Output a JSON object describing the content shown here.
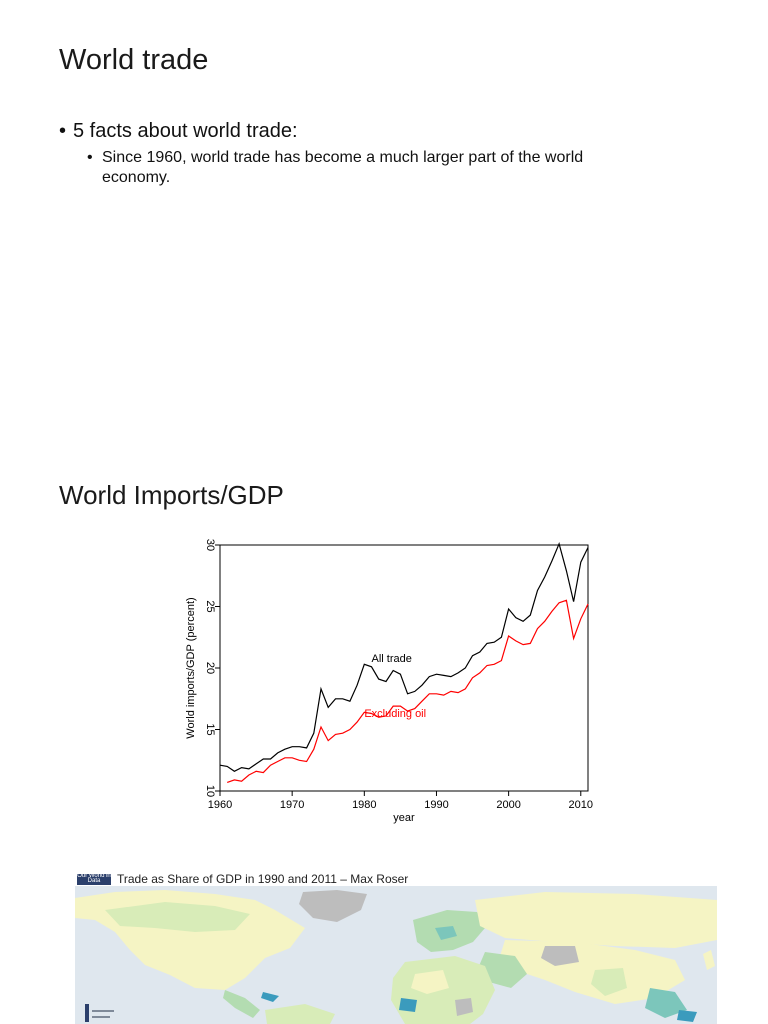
{
  "slide": {
    "title": "World trade",
    "bullets": [
      {
        "text": "5 facts about world trade:",
        "sub": [
          "Since 1960, world trade has become a much larger part of the world economy."
        ]
      }
    ],
    "bullet_char": "•"
  },
  "section2": {
    "title": "World Imports/GDP"
  },
  "chart_data": {
    "type": "line",
    "xlabel": "year",
    "ylabel": "World imports/GDP (percent)",
    "xlim": [
      1960,
      2011
    ],
    "ylim": [
      10,
      30
    ],
    "xticks": [
      1960,
      1970,
      1980,
      1990,
      2000,
      2010
    ],
    "yticks": [
      10,
      15,
      20,
      25,
      30
    ],
    "grid": false,
    "series": [
      {
        "name": "All trade",
        "color": "#000000",
        "x": [
          1960,
          1961,
          1962,
          1963,
          1964,
          1965,
          1966,
          1967,
          1968,
          1969,
          1970,
          1971,
          1972,
          1973,
          1974,
          1975,
          1976,
          1977,
          1978,
          1979,
          1980,
          1981,
          1982,
          1983,
          1984,
          1985,
          1986,
          1987,
          1988,
          1989,
          1990,
          1991,
          1992,
          1993,
          1994,
          1995,
          1996,
          1997,
          1998,
          1999,
          2000,
          2001,
          2002,
          2003,
          2004,
          2005,
          2006,
          2007,
          2008,
          2009,
          2010,
          2011
        ],
        "values": [
          12.1,
          12.0,
          11.6,
          11.9,
          11.8,
          12.2,
          12.6,
          12.6,
          13.1,
          13.4,
          13.6,
          13.6,
          13.5,
          14.7,
          18.3,
          16.8,
          17.5,
          17.5,
          17.3,
          18.6,
          20.3,
          20.1,
          19.1,
          18.9,
          19.8,
          19.5,
          17.9,
          18.1,
          18.6,
          19.3,
          19.5,
          19.4,
          19.3,
          19.6,
          20.0,
          21.0,
          21.3,
          22.0,
          22.1,
          22.5,
          24.8,
          24.1,
          23.8,
          24.3,
          26.3,
          27.4,
          28.7,
          30.1,
          27.9,
          25.4,
          28.6,
          29.8
        ]
      },
      {
        "name": "Excluding oil",
        "color": "#ff0000",
        "x": [
          1961,
          1962,
          1963,
          1964,
          1965,
          1966,
          1967,
          1968,
          1969,
          1970,
          1971,
          1972,
          1973,
          1974,
          1975,
          1976,
          1977,
          1978,
          1979,
          1980,
          1981,
          1982,
          1983,
          1984,
          1985,
          1986,
          1987,
          1988,
          1989,
          1990,
          1991,
          1992,
          1993,
          1994,
          1995,
          1996,
          1997,
          1998,
          1999,
          2000,
          2001,
          2002,
          2003,
          2004,
          2005,
          2006,
          2007,
          2008,
          2009,
          2010,
          2011
        ],
        "values": [
          10.7,
          10.9,
          10.8,
          11.3,
          11.6,
          11.5,
          12.1,
          12.4,
          12.7,
          12.7,
          12.5,
          12.4,
          13.4,
          15.2,
          14.1,
          14.6,
          14.7,
          15.0,
          15.6,
          16.4,
          16.3,
          16.0,
          16.1,
          16.9,
          16.9,
          16.5,
          16.7,
          17.3,
          17.9,
          17.9,
          17.8,
          18.1,
          18.0,
          18.3,
          19.2,
          19.6,
          20.2,
          20.3,
          20.6,
          22.6,
          22.2,
          21.9,
          22.0,
          23.2,
          23.8,
          24.6,
          25.3,
          25.5,
          22.4,
          24.0,
          25.2
        ]
      }
    ],
    "annotations": [
      {
        "text": "All trade",
        "x": 1981,
        "y": 20.5,
        "color": "#000000"
      },
      {
        "text": "Excluding oil",
        "x": 1980,
        "y": 16.0,
        "color": "#ff0000"
      }
    ]
  },
  "map": {
    "title": "Trade as Share of GDP in 1990 and 2011 – Max Roser",
    "logo_text": "Our World in Data",
    "ocean_color": "#dfe7ee",
    "land_colors": [
      "#f5f4c4",
      "#d8ecb8",
      "#b3dcb1",
      "#7cc6bb",
      "#3b9bbd",
      "#bdbdbd"
    ]
  }
}
